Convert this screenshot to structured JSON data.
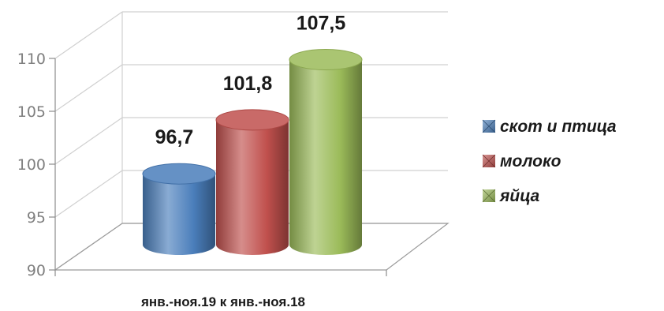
{
  "chart_data": {
    "type": "bar",
    "categories": [
      "янв.-ноя.19 к янв.-ноя.18"
    ],
    "series": [
      {
        "name": "скот и птица",
        "values": [
          96.7
        ],
        "label": "96,7",
        "color": "#4a7ebb"
      },
      {
        "name": "молоко",
        "values": [
          101.8
        ],
        "label": "101,8",
        "color": "#c0504d"
      },
      {
        "name": "яйца",
        "values": [
          107.5
        ],
        "label": "107,5",
        "color": "#9bbb59"
      }
    ],
    "title": "",
    "xlabel": "",
    "ylabel": "",
    "ylim": [
      90,
      110
    ],
    "yticks": [
      "90",
      "95",
      "100",
      "105",
      "110"
    ],
    "grid": true,
    "legend": "right",
    "style": "3d-cylinder"
  }
}
